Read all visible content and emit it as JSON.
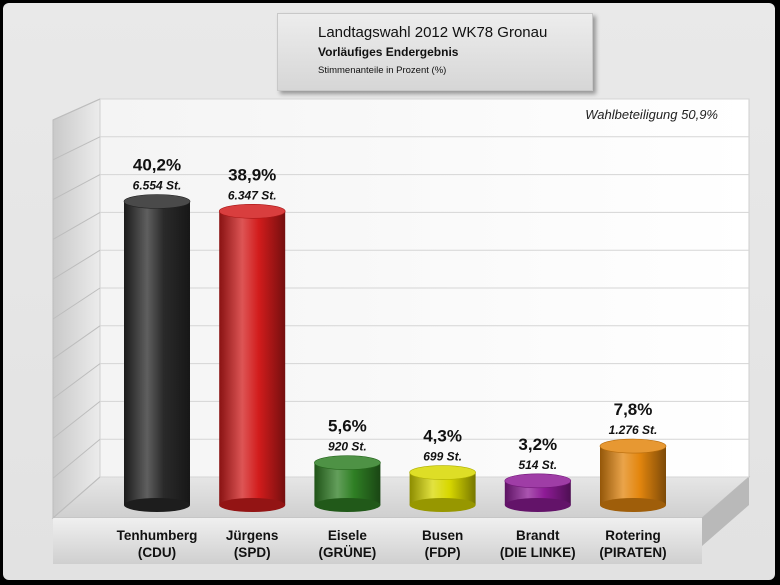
{
  "chart_data": {
    "type": "bar",
    "title": "Landtagswahl 2012 WK78 Gronau",
    "subtitle": "Vorläufiges Endergebnis",
    "subtitle2": "Stimmenanteile in Prozent (%)",
    "annotation": "Wahlbeteiligung 50,9%",
    "ylim": [
      0,
      50
    ],
    "grid": true,
    "series": [
      {
        "values": [
          40.2,
          38.9,
          5.6,
          4.3,
          3.2,
          7.8
        ],
        "value_labels": [
          "40,2%",
          "38,9%",
          "5,6%",
          "4,3%",
          "3,2%",
          "7,8%"
        ],
        "vote_labels": [
          "6.554 St.",
          "6.347 St.",
          "920 St.",
          "699 St.",
          "514 St.",
          "1.276 St."
        ]
      }
    ],
    "categories": [
      {
        "name": "Tenhumberg",
        "party": "(CDU)",
        "color": "#2a2a2a"
      },
      {
        "name": "Jürgens",
        "party": "(SPD)",
        "color": "#d21c1c"
      },
      {
        "name": "Eisele",
        "party": "(GRÜNE)",
        "color": "#2f7f24"
      },
      {
        "name": "Busen",
        "party": "(FDP)",
        "color": "#d8d800"
      },
      {
        "name": "Brandt",
        "party": "(DIE LINKE)",
        "color": "#8e1b96"
      },
      {
        "name": "Rotering",
        "party": "(PIRATEN)",
        "color": "#e3860e"
      }
    ]
  }
}
